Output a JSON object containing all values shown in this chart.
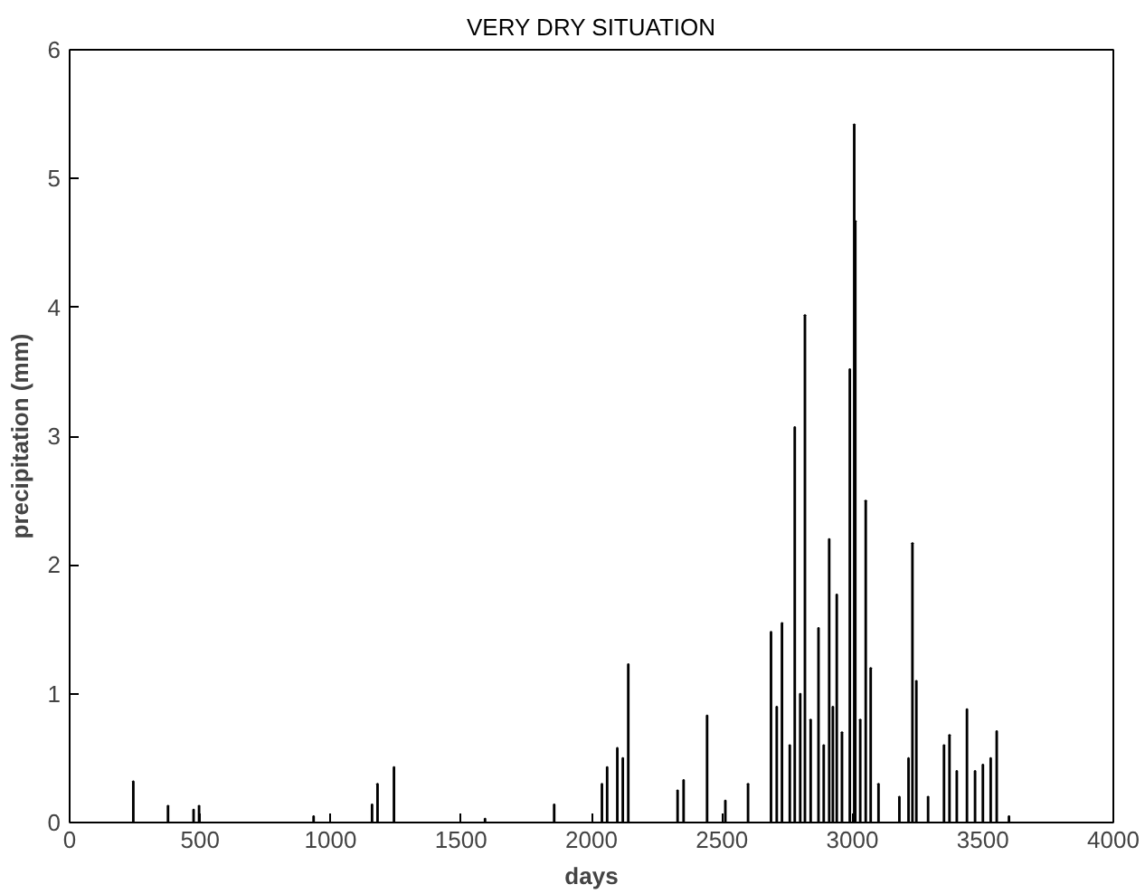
{
  "chart_data": {
    "type": "bar",
    "title": "VERY DRY SITUATION",
    "xlabel": "days",
    "ylabel": "precipitation (mm)",
    "color": "#000000",
    "x": [
      244,
      377,
      475,
      496,
      935,
      1159,
      1180,
      1243,
      1592,
      1857,
      2040,
      2060,
      2099,
      2120,
      2141,
      2330,
      2353,
      2443,
      2513,
      2600,
      2688,
      2710,
      2730,
      2760,
      2779,
      2800,
      2818,
      2840,
      2870,
      2890,
      2911,
      2925,
      2940,
      2960,
      2990,
      3007,
      3011,
      3030,
      3051,
      3070,
      3100,
      3180,
      3215,
      3230,
      3245,
      3290,
      3351,
      3372,
      3400,
      3439,
      3470,
      3500,
      3530,
      3553,
      3600
    ],
    "values": [
      0.32,
      0.13,
      0.1,
      0.13,
      0.05,
      0.14,
      0.3,
      0.43,
      0.03,
      0.14,
      0.3,
      0.43,
      0.58,
      0.5,
      1.23,
      0.25,
      0.33,
      0.83,
      0.17,
      0.3,
      1.48,
      0.9,
      1.55,
      0.6,
      3.07,
      1.0,
      3.94,
      0.8,
      1.51,
      0.6,
      2.2,
      0.9,
      1.77,
      0.7,
      3.52,
      5.42,
      4.67,
      0.8,
      2.5,
      1.2,
      0.3,
      0.2,
      0.5,
      2.17,
      1.1,
      0.2,
      0.6,
      0.68,
      0.4,
      0.88,
      0.4,
      0.45,
      0.5,
      0.71,
      0.05
    ],
    "xlim": [
      0,
      4000
    ],
    "ylim": [
      0,
      6
    ],
    "xticks": [
      0,
      500,
      1000,
      1500,
      2000,
      2500,
      3000,
      3500,
      4000
    ],
    "yticks": [
      0,
      1,
      2,
      3,
      4,
      5,
      6
    ],
    "grid": false
  }
}
